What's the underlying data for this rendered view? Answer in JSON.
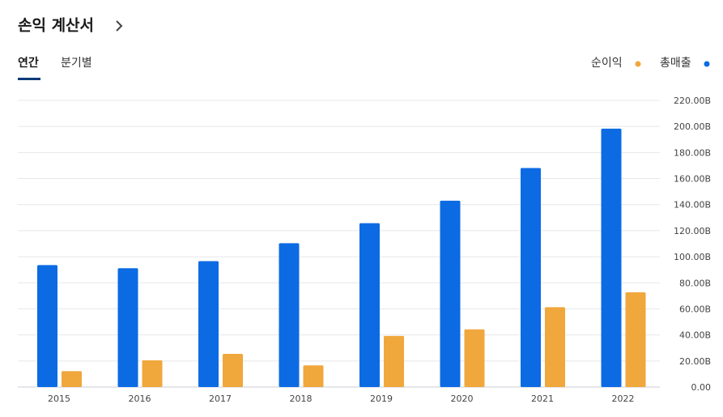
{
  "header": {
    "title": "손익 계산서",
    "tabs": [
      "연간",
      "분기별"
    ]
  },
  "chart_data": {
    "type": "bar",
    "categories": [
      "2015",
      "2016",
      "2017",
      "2018",
      "2019",
      "2020",
      "2021",
      "2022"
    ],
    "series": [
      {
        "name": "순이익",
        "color": "#f0a73c",
        "values": [
          12.2,
          20.5,
          25.5,
          16.6,
          39.2,
          44.3,
          61.3,
          72.7
        ]
      },
      {
        "name": "총매출",
        "color": "#0c6be3",
        "values": [
          93.6,
          91.2,
          96.6,
          110.4,
          125.8,
          143.0,
          168.1,
          198.3
        ]
      }
    ],
    "ylim": [
      0,
      220
    ],
    "yticks": [
      {
        "value": 0,
        "label": "0.00"
      },
      {
        "value": 20,
        "label": "20.00B"
      },
      {
        "value": 40,
        "label": "40.00B"
      },
      {
        "value": 60,
        "label": "60.00B"
      },
      {
        "value": 80,
        "label": "80.00B"
      },
      {
        "value": 100,
        "label": "100.00B"
      },
      {
        "value": 120,
        "label": "120.00B"
      },
      {
        "value": 140,
        "label": "140.00B"
      },
      {
        "value": 160,
        "label": "160.00B"
      },
      {
        "value": 180,
        "label": "180.00B"
      },
      {
        "value": 200,
        "label": "200.00B"
      },
      {
        "value": 220,
        "label": "220.00B"
      }
    ],
    "grid": true
  }
}
